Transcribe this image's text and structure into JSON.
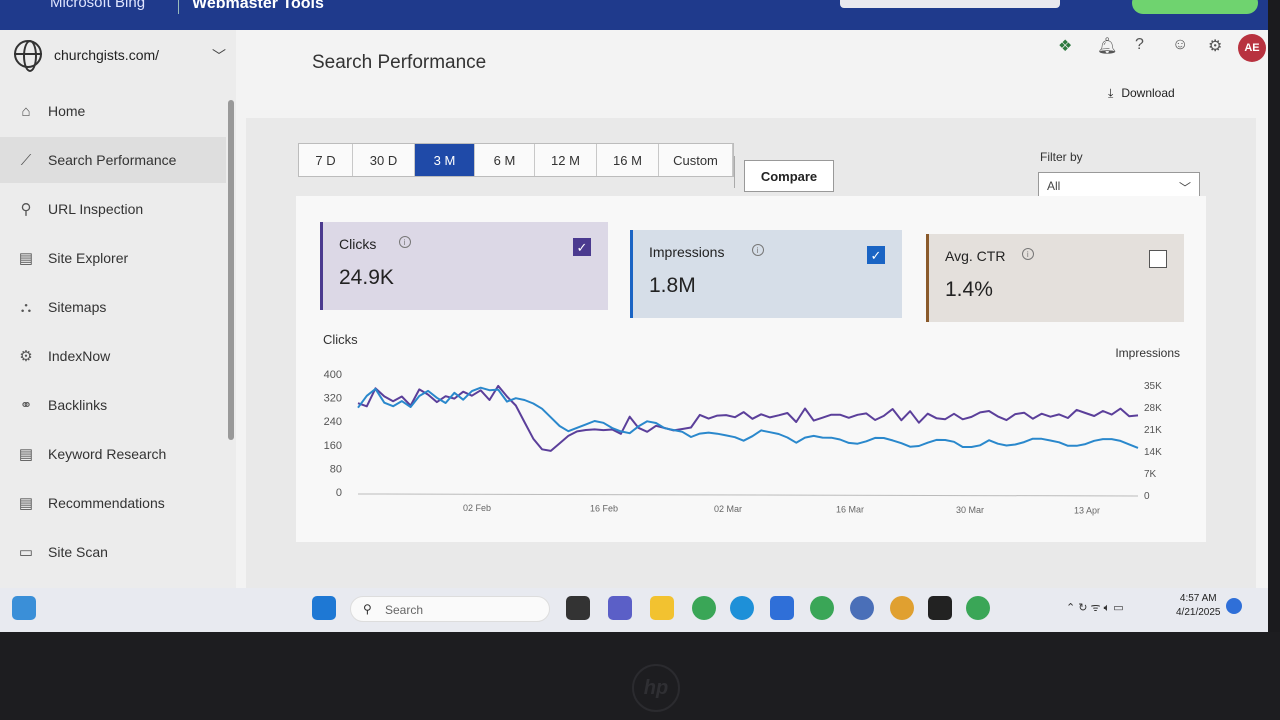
{
  "topbar": {
    "brand": "Microsoft Bing",
    "product": "Webmaster Tools"
  },
  "header": {
    "icons": [
      "apps-icon",
      "bell-icon",
      "help-icon",
      "smiley-icon",
      "gear-icon"
    ],
    "avatar_initials": "AE"
  },
  "sidebar": {
    "site": "churchgists.com/",
    "items": [
      {
        "label": "Home",
        "icon": "home-icon",
        "glyph": "⌂"
      },
      {
        "label": "Search Performance",
        "icon": "trend-icon",
        "glyph": "⟋",
        "active": true
      },
      {
        "label": "URL Inspection",
        "icon": "search-icon",
        "glyph": "⚲"
      },
      {
        "label": "Site Explorer",
        "icon": "document-icon",
        "glyph": "▤"
      },
      {
        "label": "Sitemaps",
        "icon": "sitemap-icon",
        "glyph": "⛬"
      },
      {
        "label": "IndexNow",
        "icon": "gear-icon",
        "glyph": "⚙"
      },
      {
        "label": "Backlinks",
        "icon": "link-icon",
        "glyph": "⚭"
      },
      {
        "label": "Keyword Research",
        "icon": "document-icon",
        "glyph": "▤"
      },
      {
        "label": "Recommendations",
        "icon": "document-icon",
        "glyph": "▤"
      },
      {
        "label": "Site Scan",
        "icon": "scan-icon",
        "glyph": "▭"
      }
    ]
  },
  "main": {
    "title": "Search Performance",
    "download_label": "Download",
    "ranges": [
      "7 D",
      "30 D",
      "3 M",
      "6 M",
      "12 M",
      "16 M",
      "Custom"
    ],
    "selected_range": "3 M",
    "compare_label": "Compare",
    "filter_label": "Filter by",
    "filter_value": "All"
  },
  "metrics": [
    {
      "title": "Clicks",
      "value": "24.9K",
      "checked": true,
      "accent": "#4b3a8f",
      "bg": "#dcd8e6"
    },
    {
      "title": "Impressions",
      "value": "1.8M",
      "checked": true,
      "accent": "#1a64c4",
      "bg": "#d6dee8"
    },
    {
      "title": "Avg. CTR",
      "value": "1.4%",
      "checked": false,
      "accent": "#8a5a2b",
      "bg": "#e4e0dc"
    }
  ],
  "chart_data": {
    "type": "line",
    "ylabel_left": "Clicks",
    "ylabel_right": "Impressions",
    "yticks_left": [
      "400",
      "320",
      "240",
      "160",
      "80",
      "0"
    ],
    "yticks_right": [
      "35K",
      "28K",
      "21K",
      "14K",
      "7K",
      "0"
    ],
    "ylim_left": [
      0,
      400
    ],
    "ylim_right": [
      0,
      35000
    ],
    "xticks": [
      "02 Feb",
      "16 Feb",
      "02 Mar",
      "16 Mar",
      "30 Mar",
      "13 Apr"
    ],
    "grid": false,
    "series": [
      {
        "name": "Clicks",
        "axis": "left",
        "color": "#5b3f9a",
        "values": [
          295,
          285,
          345,
          318,
          302,
          318,
          288,
          342,
          325,
          300,
          320,
          312,
          335,
          322,
          340,
          308,
          355,
          320,
          290,
          235,
          180,
          145,
          140,
          165,
          190,
          205,
          210,
          212,
          210,
          212,
          198,
          255,
          218,
          205,
          225,
          218,
          210,
          215,
          220,
          262,
          250,
          260,
          262,
          255,
          272,
          250,
          265,
          255,
          262,
          270,
          240,
          285,
          245,
          255,
          265,
          265,
          255,
          265,
          270,
          248,
          262,
          285,
          248,
          278,
          240,
          270,
          255,
          252,
          270,
          252,
          260,
          275,
          280,
          262,
          250,
          270,
          275,
          255,
          272,
          262,
          270,
          258,
          285,
          275,
          265,
          282,
          270,
          290,
          265,
          268
        ]
      },
      {
        "name": "Impressions",
        "axis": "right",
        "color": "#2a88cc",
        "values": [
          24500,
          28000,
          30000,
          26000,
          25000,
          26500,
          24800,
          28000,
          29500,
          27500,
          26000,
          29000,
          27000,
          29500,
          30500,
          29800,
          30000,
          26500,
          27500,
          27000,
          26000,
          24500,
          22000,
          19500,
          18000,
          19000,
          20000,
          21000,
          20500,
          19000,
          18000,
          17500,
          19500,
          21000,
          20500,
          19000,
          18500,
          18000,
          16500,
          17500,
          17800,
          17500,
          17000,
          16500,
          15500,
          16800,
          18500,
          18000,
          17500,
          16500,
          15000,
          16500,
          17000,
          16500,
          16500,
          16000,
          15000,
          14800,
          15500,
          16500,
          16500,
          15800,
          15000,
          14000,
          14200,
          15200,
          16000,
          16000,
          15500,
          14000,
          14000,
          14500,
          16000,
          15000,
          14500,
          14800,
          15500,
          16500,
          16500,
          16000,
          15500,
          14500,
          14500,
          15000,
          16000,
          16500,
          16500,
          16000,
          15000,
          14000
        ]
      }
    ]
  },
  "taskbar": {
    "search_placeholder": "Search",
    "time": "4:57 AM",
    "date": "4/21/2025"
  }
}
